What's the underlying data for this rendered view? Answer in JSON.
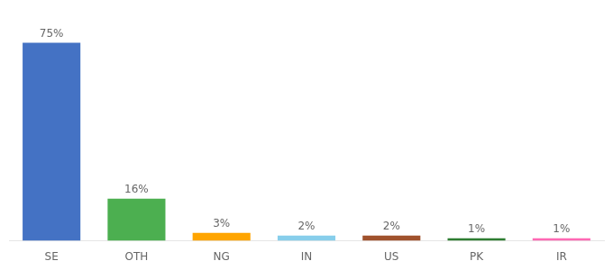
{
  "chart_data": {
    "type": "bar",
    "categories": [
      "SE",
      "OTH",
      "NG",
      "IN",
      "US",
      "PK",
      "IR"
    ],
    "values": [
      75,
      16,
      3,
      2,
      2,
      1,
      1
    ],
    "value_labels": [
      "75%",
      "16%",
      "3%",
      "2%",
      "2%",
      "1%",
      "1%"
    ],
    "colors": [
      "#4472C4",
      "#4CAF50",
      "#FFA500",
      "#87CEEB",
      "#A0522D",
      "#2E7D32",
      "#FF69B4"
    ],
    "ylim": [
      0,
      83
    ],
    "data_labels": true,
    "tick_labels": "x",
    "grid": false
  }
}
